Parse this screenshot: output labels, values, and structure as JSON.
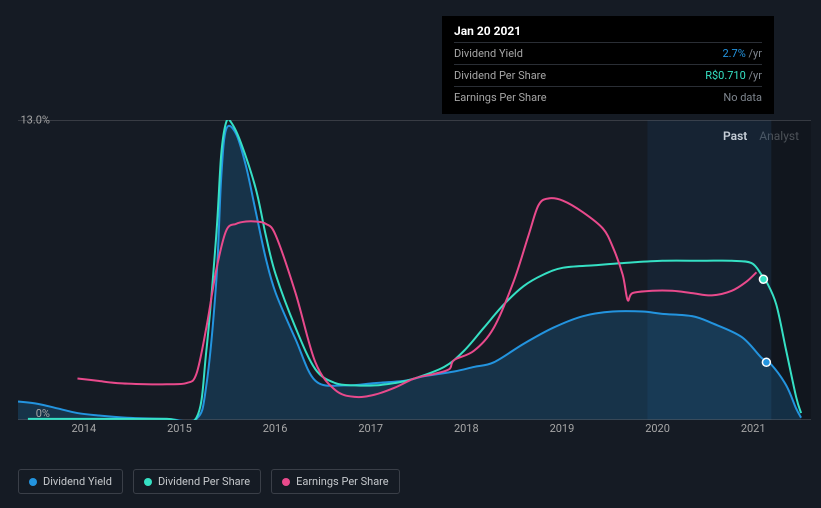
{
  "chart": {
    "type": "line",
    "background_color": "#151b24",
    "plot_background": "#1a202b",
    "grid_color": "#5a5e65",
    "text_color": "#a6a6a6",
    "y_axis": {
      "min": 0,
      "max": 13.0,
      "ticks": [
        0,
        13.0
      ],
      "tick_labels": [
        "0%",
        "13.0%"
      ]
    },
    "x_axis": {
      "min": 2013.5,
      "max": 2021.5,
      "ticks": [
        2014,
        2015,
        2016,
        2017,
        2018,
        2019,
        2020,
        2021
      ],
      "tick_labels": [
        "2014",
        "2015",
        "2016",
        "2017",
        "2018",
        "2019",
        "2020",
        "2021"
      ]
    },
    "highlight_band": {
      "x_start": 2019.85,
      "x_end": 2021.1
    },
    "dark_band": {
      "x_start": 2021.1,
      "x_end": 2021.5
    },
    "series": [
      {
        "name": "Dividend Yield",
        "color": "#2394df",
        "fill_area": true,
        "data": [
          [
            2013.5,
            0.8
          ],
          [
            2013.7,
            0.7
          ],
          [
            2013.9,
            0.5
          ],
          [
            2014.1,
            0.3
          ],
          [
            2014.3,
            0.2
          ],
          [
            2014.6,
            0.1
          ],
          [
            2015.0,
            0.05
          ],
          [
            2015.3,
            0.05
          ],
          [
            2015.4,
            1.5
          ],
          [
            2015.5,
            6.0
          ],
          [
            2015.55,
            10.5
          ],
          [
            2015.6,
            12.6
          ],
          [
            2015.7,
            12.4
          ],
          [
            2015.8,
            11.0
          ],
          [
            2015.9,
            9.0
          ],
          [
            2016.0,
            7.0
          ],
          [
            2016.1,
            5.5
          ],
          [
            2016.3,
            3.5
          ],
          [
            2016.5,
            1.7
          ],
          [
            2016.8,
            1.5
          ],
          [
            2017.1,
            1.6
          ],
          [
            2017.4,
            1.7
          ],
          [
            2017.6,
            1.9
          ],
          [
            2017.9,
            2.1
          ],
          [
            2018.1,
            2.3
          ],
          [
            2018.3,
            2.5
          ],
          [
            2018.6,
            3.3
          ],
          [
            2018.9,
            4.0
          ],
          [
            2019.2,
            4.5
          ],
          [
            2019.5,
            4.7
          ],
          [
            2019.8,
            4.7
          ],
          [
            2020.0,
            4.6
          ],
          [
            2020.3,
            4.5
          ],
          [
            2020.5,
            4.2
          ],
          [
            2020.8,
            3.6
          ],
          [
            2021.0,
            2.7
          ],
          [
            2021.1,
            2.4
          ],
          [
            2021.25,
            1.5
          ],
          [
            2021.35,
            0.5
          ],
          [
            2021.4,
            0.1
          ]
        ],
        "markers": [
          {
            "x": 2021.05,
            "y": 2.5
          }
        ]
      },
      {
        "name": "Dividend Per Share",
        "color": "#35e0c4",
        "fill_area": false,
        "data": [
          [
            2013.6,
            0.05
          ],
          [
            2014.0,
            0.05
          ],
          [
            2014.5,
            0.05
          ],
          [
            2015.0,
            0.05
          ],
          [
            2015.3,
            0.1
          ],
          [
            2015.4,
            3.0
          ],
          [
            2015.5,
            8.0
          ],
          [
            2015.55,
            11.5
          ],
          [
            2015.6,
            12.9
          ],
          [
            2015.65,
            12.9
          ],
          [
            2015.75,
            12.0
          ],
          [
            2015.9,
            10.0
          ],
          [
            2016.0,
            8.0
          ],
          [
            2016.1,
            6.3
          ],
          [
            2016.3,
            4.0
          ],
          [
            2016.5,
            2.2
          ],
          [
            2016.7,
            1.6
          ],
          [
            2016.9,
            1.5
          ],
          [
            2017.1,
            1.5
          ],
          [
            2017.3,
            1.6
          ],
          [
            2017.5,
            1.8
          ],
          [
            2017.8,
            2.3
          ],
          [
            2018.0,
            3.0
          ],
          [
            2018.2,
            4.0
          ],
          [
            2018.4,
            5.0
          ],
          [
            2018.6,
            5.8
          ],
          [
            2018.8,
            6.3
          ],
          [
            2019.0,
            6.6
          ],
          [
            2019.3,
            6.7
          ],
          [
            2019.6,
            6.8
          ],
          [
            2020.0,
            6.9
          ],
          [
            2020.4,
            6.9
          ],
          [
            2020.7,
            6.9
          ],
          [
            2020.9,
            6.8
          ],
          [
            2021.0,
            6.3
          ],
          [
            2021.05,
            6.0
          ],
          [
            2021.15,
            5.0
          ],
          [
            2021.25,
            3.0
          ],
          [
            2021.35,
            1.0
          ],
          [
            2021.4,
            0.3
          ]
        ],
        "markers": [
          {
            "x": 2021.02,
            "y": 6.1
          }
        ]
      },
      {
        "name": "Earnings Per Share",
        "color": "#e94a8c",
        "fill_area": false,
        "data": [
          [
            2014.1,
            1.8
          ],
          [
            2014.3,
            1.7
          ],
          [
            2014.5,
            1.6
          ],
          [
            2014.8,
            1.55
          ],
          [
            2015.0,
            1.55
          ],
          [
            2015.2,
            1.6
          ],
          [
            2015.3,
            2.0
          ],
          [
            2015.4,
            4.0
          ],
          [
            2015.5,
            6.5
          ],
          [
            2015.6,
            8.2
          ],
          [
            2015.7,
            8.5
          ],
          [
            2015.8,
            8.6
          ],
          [
            2015.9,
            8.6
          ],
          [
            2016.0,
            8.5
          ],
          [
            2016.1,
            8.0
          ],
          [
            2016.3,
            5.5
          ],
          [
            2016.5,
            2.5
          ],
          [
            2016.7,
            1.3
          ],
          [
            2016.9,
            1.0
          ],
          [
            2017.1,
            1.1
          ],
          [
            2017.3,
            1.4
          ],
          [
            2017.5,
            1.8
          ],
          [
            2017.7,
            2.0
          ],
          [
            2017.85,
            2.2
          ],
          [
            2017.9,
            2.6
          ],
          [
            2018.1,
            3.0
          ],
          [
            2018.3,
            4.0
          ],
          [
            2018.5,
            6.0
          ],
          [
            2018.65,
            8.0
          ],
          [
            2018.75,
            9.3
          ],
          [
            2018.85,
            9.6
          ],
          [
            2019.0,
            9.5
          ],
          [
            2019.2,
            9.0
          ],
          [
            2019.4,
            8.3
          ],
          [
            2019.5,
            7.5
          ],
          [
            2019.6,
            6.3
          ],
          [
            2019.65,
            5.2
          ],
          [
            2019.7,
            5.5
          ],
          [
            2019.9,
            5.6
          ],
          [
            2020.1,
            5.6
          ],
          [
            2020.3,
            5.5
          ],
          [
            2020.5,
            5.4
          ],
          [
            2020.7,
            5.6
          ],
          [
            2020.85,
            6.0
          ],
          [
            2020.95,
            6.4
          ]
        ],
        "markers": []
      }
    ],
    "tabs": {
      "past": "Past",
      "analyst": "Analyst"
    },
    "tooltip": {
      "title": "Jan 20 2021",
      "rows": [
        {
          "label": "Dividend Yield",
          "value": "2.7%",
          "unit": "/yr",
          "value_color": "#2394df"
        },
        {
          "label": "Dividend Per Share",
          "value": "R$0.710",
          "unit": "/yr",
          "value_color": "#35e0c4"
        },
        {
          "label": "Earnings Per Share",
          "value": "No data",
          "unit": "",
          "value_color": "#7f868f"
        }
      ]
    },
    "legend": [
      {
        "label": "Dividend Yield",
        "color": "#2394df"
      },
      {
        "label": "Dividend Per Share",
        "color": "#35e0c4"
      },
      {
        "label": "Earnings Per Share",
        "color": "#e94a8c"
      }
    ]
  }
}
